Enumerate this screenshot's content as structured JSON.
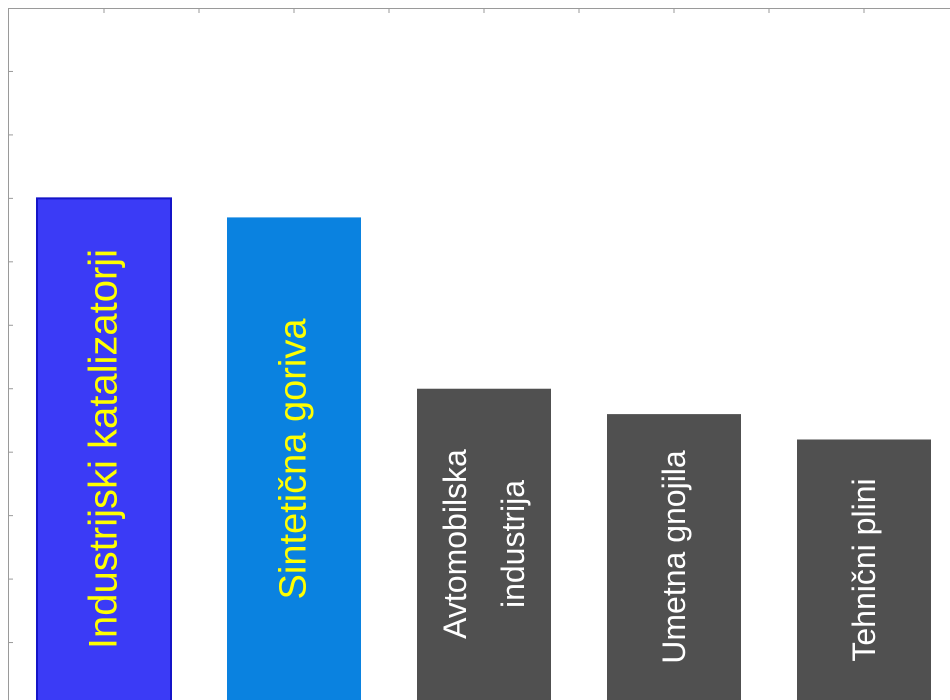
{
  "chart_data": {
    "type": "bar",
    "categories": [
      "Industrijski katalizatorji",
      "Sintetična goriva",
      "Avtomobilska industrija",
      "Umetna gnojila",
      "Tehnični plini"
    ],
    "values": [
      8.0,
      7.7,
      5.0,
      4.6,
      4.2
    ],
    "colors": [
      "#3b3bf6",
      "#0a82e0",
      "#505050",
      "#505050",
      "#505050"
    ],
    "label_colors": [
      "#ffff00",
      "#ffff00",
      "#ffffff",
      "#ffffff",
      "#ffffff"
    ],
    "ylim": [
      0,
      11
    ],
    "yticks": [
      1,
      2,
      3,
      4,
      5,
      6,
      7,
      8,
      9,
      10
    ]
  }
}
